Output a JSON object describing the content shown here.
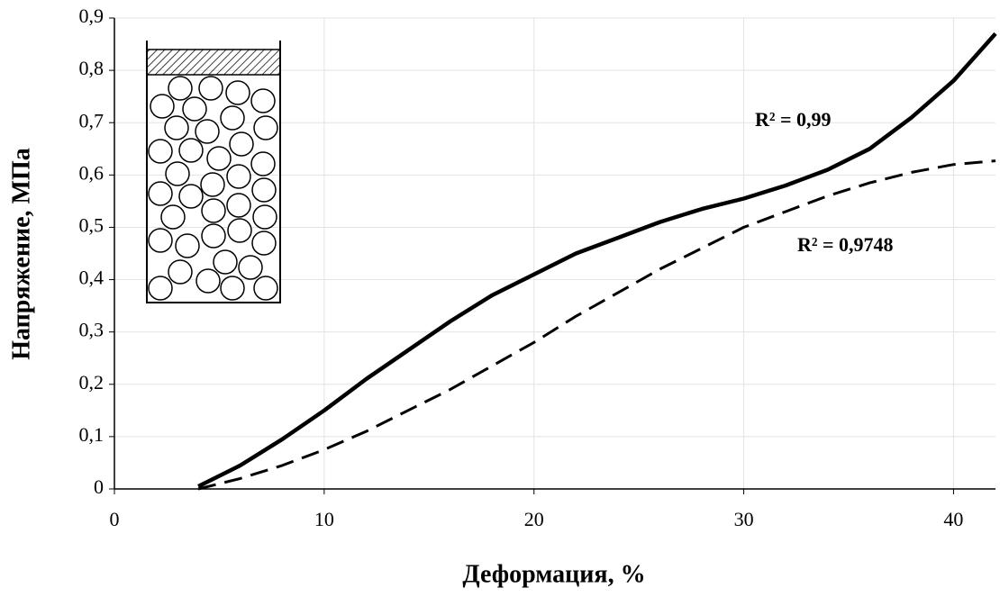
{
  "chart_data": {
    "type": "line",
    "x_label": "Деформация, %",
    "y_label": "Напряжение, МПа",
    "annotations": [
      "R² = 0,99",
      "R² = 0,9748"
    ],
    "x": [
      4,
      6,
      8,
      10,
      12,
      14,
      16,
      18,
      20,
      22,
      24,
      26,
      28,
      30,
      32,
      34,
      36,
      38,
      40,
      42
    ],
    "series": [
      {
        "color": "#000000",
        "style": "solid",
        "values": [
          0.005,
          0.045,
          0.095,
          0.15,
          0.21,
          0.265,
          0.32,
          0.37,
          0.41,
          0.45,
          0.48,
          0.51,
          0.535,
          0.555,
          0.58,
          0.61,
          0.65,
          0.71,
          0.78,
          0.87
        ]
      },
      {
        "color": "#000000",
        "style": "dashed",
        "values": [
          0,
          0.02,
          0.045,
          0.075,
          0.11,
          0.15,
          0.19,
          0.235,
          0.28,
          0.33,
          0.375,
          0.42,
          0.46,
          0.5,
          0.53,
          0.56,
          0.585,
          0.605,
          0.62,
          0.627
        ]
      }
    ],
    "xlim": [
      0,
      42
    ],
    "xticks": [
      0,
      10,
      20,
      30,
      40
    ],
    "ylim": [
      0,
      0.9
    ],
    "yticks": [
      0,
      {
        "value": 0.1,
        "label": "0,1"
      },
      {
        "value": 0.2,
        "label": "0,2"
      },
      {
        "value": 0.3,
        "label": "0,3"
      },
      {
        "value": 0.4,
        "label": "0,4"
      },
      {
        "value": 0.5,
        "label": "0,5"
      },
      {
        "value": 0.6,
        "label": "0,6"
      },
      {
        "value": 0.7,
        "label": "0,7"
      },
      {
        "value": 0.8,
        "label": "0,8"
      },
      {
        "value": 0.9,
        "label": "0,9"
      }
    ],
    "grid": true
  }
}
